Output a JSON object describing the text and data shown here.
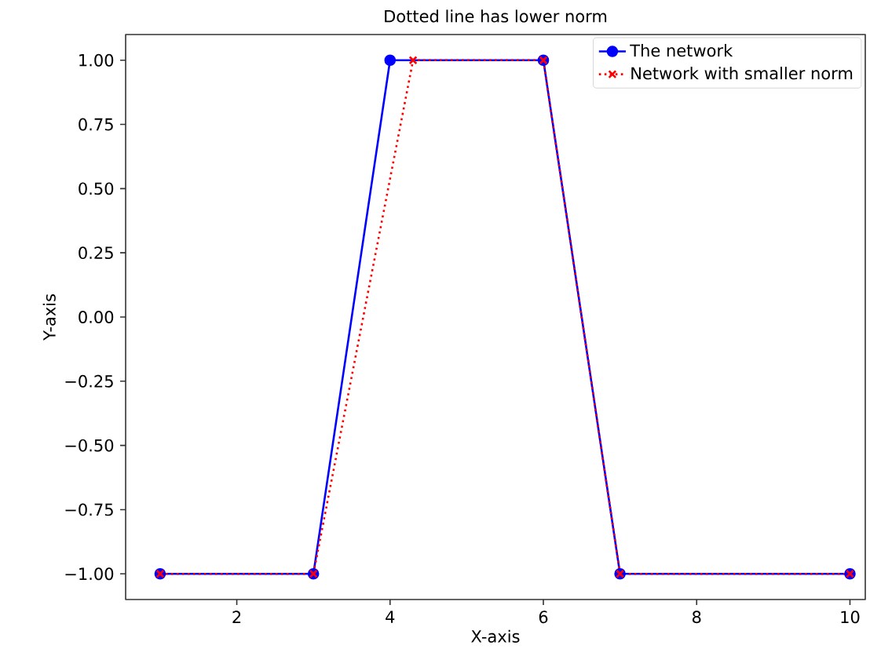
{
  "chart_data": {
    "type": "line",
    "title": "Dotted line has lower norm",
    "xlabel": "X-axis",
    "ylabel": "Y-axis",
    "series": [
      {
        "name": "The network",
        "color": "#0000ff",
        "x": [
          1,
          3,
          4,
          6,
          7,
          10
        ],
        "values": [
          -1,
          -1,
          1,
          1,
          -1,
          -1
        ],
        "marker": "circle",
        "line_style": "solid"
      },
      {
        "name": "Network with smaller norm",
        "color": "#ff0000",
        "x": [
          1,
          3,
          4.3,
          6,
          7,
          10
        ],
        "values": [
          -1,
          -1,
          1,
          1,
          -1,
          -1
        ],
        "marker": "cross",
        "line_style": "dotted"
      }
    ],
    "xlim": [
      0.55,
      10.2
    ],
    "xticks": [
      2,
      4,
      6,
      8,
      10
    ],
    "ylim": [
      -1.1,
      1.1
    ],
    "yticks": [
      {
        "value": -1,
        "label": "−1.00"
      },
      {
        "value": -0.75,
        "label": "−0.75"
      },
      {
        "value": -0.5,
        "label": "−0.50"
      },
      {
        "value": -0.25,
        "label": "−0.25"
      },
      {
        "value": 0,
        "label": "0.00"
      },
      {
        "value": 0.25,
        "label": "0.25"
      },
      {
        "value": 0.5,
        "label": "0.50"
      },
      {
        "value": 0.75,
        "label": "0.75"
      },
      {
        "value": 1,
        "label": "1.00"
      }
    ],
    "legend": "top right",
    "grid": false
  }
}
